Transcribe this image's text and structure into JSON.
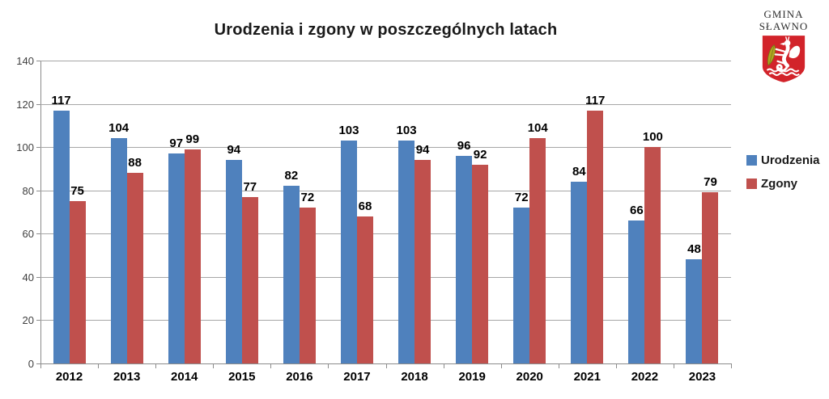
{
  "title": "Urodzenia i zgony w poszczególnych latach",
  "logo": {
    "line1": "GMINA",
    "line2": "SŁAWNO",
    "shield_color": "#d2232a",
    "griffin_color": "#ffffff",
    "fish_color": "#b2a620"
  },
  "chart_data": {
    "type": "bar",
    "title": "Urodzenia i zgony w poszczególnych latach",
    "categories": [
      "2012",
      "2013",
      "2014",
      "2015",
      "2016",
      "2017",
      "2018",
      "2019",
      "2020",
      "2021",
      "2022",
      "2023"
    ],
    "series": [
      {
        "name": "Urodzenia",
        "color": "#4F81BD",
        "values": [
          117,
          104,
          97,
          94,
          82,
          103,
          103,
          96,
          72,
          84,
          66,
          48
        ]
      },
      {
        "name": "Zgony",
        "color": "#C0504D",
        "values": [
          75,
          88,
          99,
          77,
          72,
          68,
          94,
          92,
          104,
          117,
          100,
          79
        ]
      }
    ],
    "xlabel": "",
    "ylabel": "",
    "ylim": [
      0,
      140
    ],
    "ytick_step": 20,
    "yticks": [
      0,
      20,
      40,
      60,
      80,
      100,
      120,
      140
    ],
    "grid": true,
    "legend_position": "right",
    "value_labels": true
  },
  "colors": {
    "gridline": "#a6a6a6",
    "axis": "#8c8c8c",
    "text": "#000000"
  }
}
